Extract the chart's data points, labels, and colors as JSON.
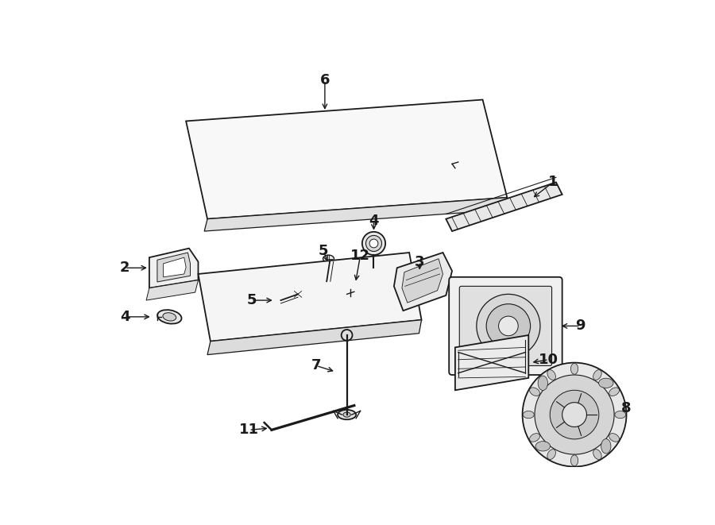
{
  "background_color": "#ffffff",
  "line_color": "#1a1a1a",
  "figsize": [
    9.0,
    6.61
  ],
  "dpi": 100,
  "label_fontsize": 13,
  "lw": 1.3
}
